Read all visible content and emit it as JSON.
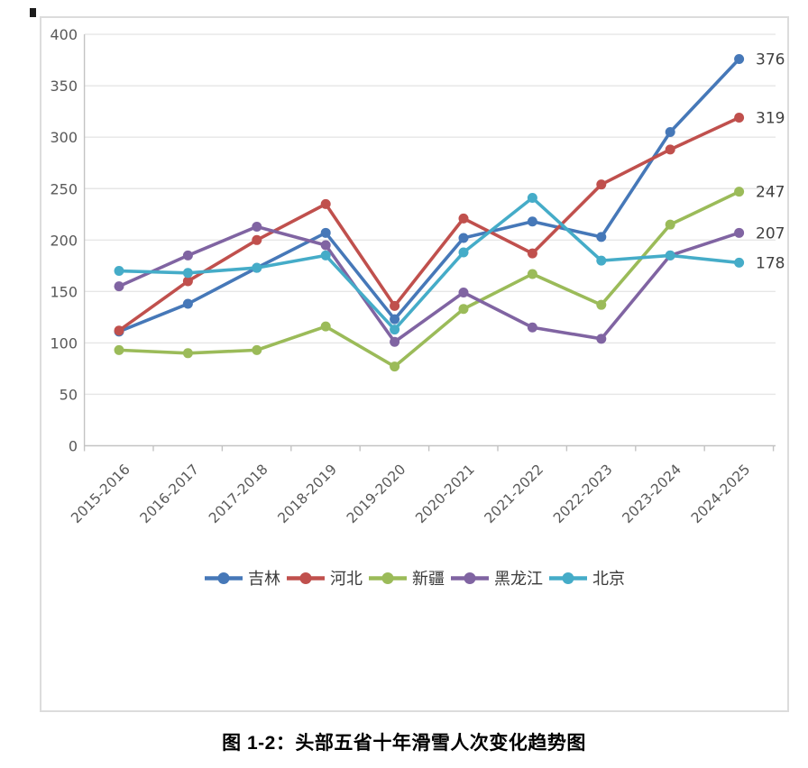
{
  "caption": {
    "text": "图 1-2：头部五省十年滑雪人次变化趋势图"
  },
  "chart_data": {
    "type": "line",
    "title": "",
    "xlabel": "",
    "ylabel": "",
    "categories": [
      "2015-2016",
      "2016-2017",
      "2017-2018",
      "2018-2019",
      "2019-2020",
      "2020-2021",
      "2021-2022",
      "2022-2023",
      "2023-2024",
      "2024-2025"
    ],
    "series": [
      {
        "name": "吉林",
        "color": "#4678B8",
        "values": [
          111,
          138,
          173,
          207,
          123,
          202,
          218,
          203,
          305,
          376
        ],
        "end_label": "376"
      },
      {
        "name": "河北",
        "color": "#C0504D",
        "values": [
          112,
          160,
          200,
          235,
          136,
          221,
          187,
          254,
          288,
          319
        ],
        "end_label": "319"
      },
      {
        "name": "新疆",
        "color": "#9BBB59",
        "values": [
          93,
          90,
          93,
          116,
          77,
          133,
          167,
          137,
          215,
          247
        ],
        "end_label": "247"
      },
      {
        "name": "黑龙江",
        "color": "#8064A2",
        "values": [
          155,
          185,
          213,
          195,
          101,
          149,
          115,
          104,
          185,
          207
        ],
        "end_label": "207"
      },
      {
        "name": "北京",
        "color": "#45ACC8",
        "values": [
          170,
          168,
          173,
          185,
          113,
          188,
          241,
          180,
          185,
          178
        ],
        "end_label": "178"
      }
    ],
    "ylim": [
      0,
      400
    ],
    "yticks": [
      0,
      50,
      100,
      150,
      200,
      250,
      300,
      350,
      400
    ],
    "grid": true,
    "legend_position": "bottom",
    "styling": {
      "grid_color": "#e6e6e6",
      "axis_color": "#c3c3c3",
      "tick_label_color": "#595959",
      "end_label_color": "#3f3f3f"
    }
  }
}
